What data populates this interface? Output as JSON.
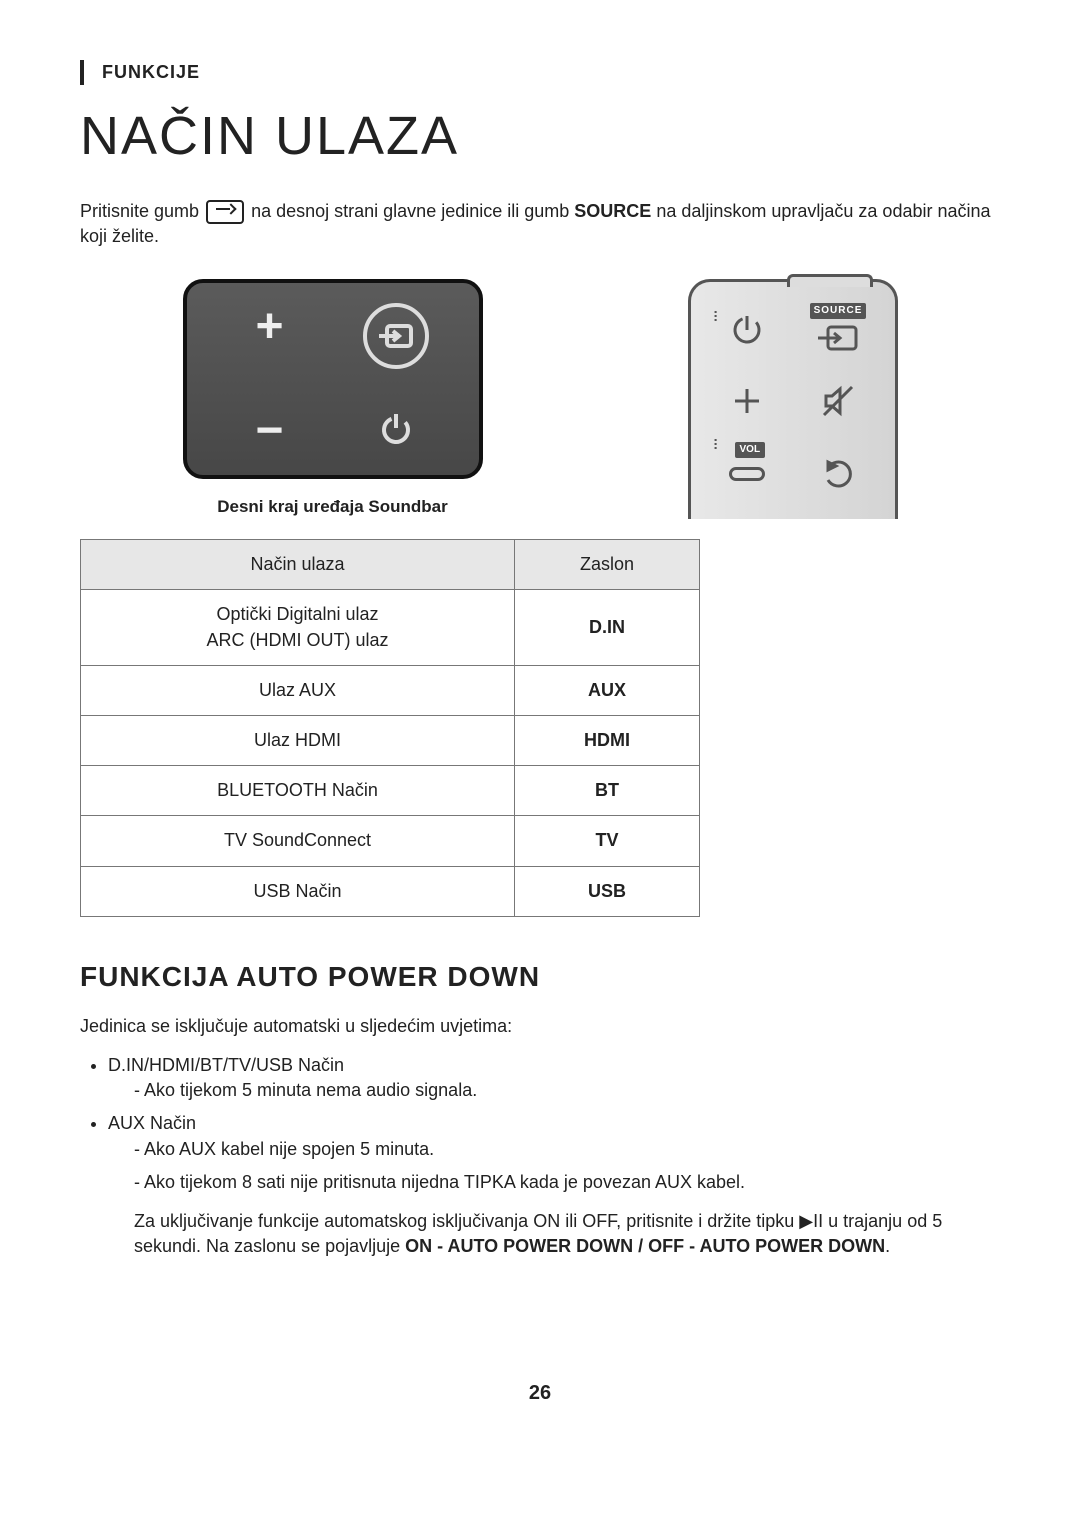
{
  "header": {
    "section": "FUNKCIJE",
    "title": "NAČIN ULAZA"
  },
  "intro": {
    "part1": "Pritisnite gumb ",
    "part2": " na desnoj strani glavne jedinice ili gumb ",
    "source_word": "SOURCE",
    "part3": " na daljinskom upravljaču za odabir načina koji želite."
  },
  "soundbar_caption": "Desni kraj uređaja Soundbar",
  "remote_labels": {
    "source": "SOURCE",
    "vol": "VOL"
  },
  "table": {
    "headers": [
      "Način ulaza",
      "Zaslon"
    ],
    "rows": [
      {
        "mode": "Optički Digitalni ulaz\nARC (HDMI OUT) ulaz",
        "display": "D.IN"
      },
      {
        "mode": "Ulaz AUX",
        "display": "AUX"
      },
      {
        "mode": "Ulaz HDMI",
        "display": "HDMI"
      },
      {
        "mode": "BLUETOOTH Način",
        "display": "BT"
      },
      {
        "mode": "TV SoundConnect",
        "display": "TV"
      },
      {
        "mode": "USB Način",
        "display": "USB"
      }
    ]
  },
  "auto_power": {
    "heading": "FUNKCIJA AUTO POWER DOWN",
    "lead": "Jedinica se isključuje automatski u sljedećim uvjetima:",
    "bullets": [
      {
        "title": "D.IN/HDMI/BT/TV/USB Način",
        "subs": [
          "Ako tijekom 5 minuta nema audio signala."
        ]
      },
      {
        "title": "AUX Način",
        "subs": [
          "Ako AUX kabel nije spojen 5 minuta.",
          "Ako tijekom 8 sati nije pritisnuta nijedna TIPKA kada je povezan AUX kabel."
        ]
      }
    ],
    "note_pre": "Za uključivanje funkcije automatskog isključivanja ON ili OFF, pritisnite i držite tipku ",
    "note_post": " u trajanju od 5 sekundi. Na zaslonu se pojavljuje ",
    "note_bold": "ON - AUTO POWER DOWN / OFF - AUTO POWER DOWN",
    "note_end": "."
  },
  "page": "26"
}
